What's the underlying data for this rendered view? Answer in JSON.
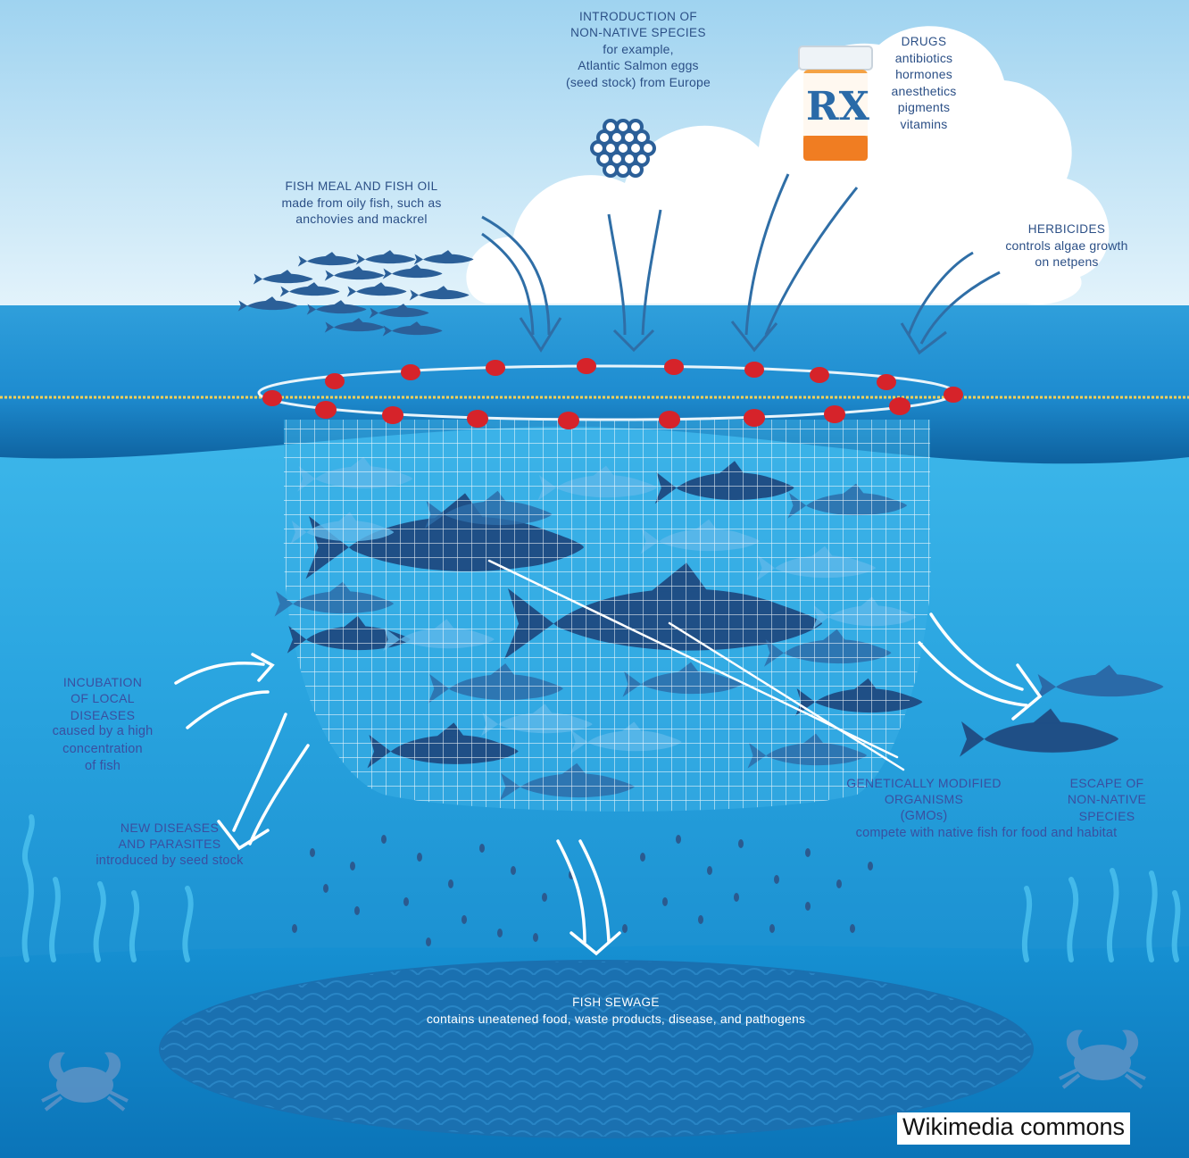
{
  "callouts": {
    "non_native_intro": {
      "heading": [
        "INTRODUCTION OF",
        "NON-NATIVE SPECIES"
      ],
      "body": [
        "for example,",
        "Atlantic Salmon eggs",
        "(seed stock) from Europe"
      ]
    },
    "drugs": {
      "heading": [
        "DRUGS"
      ],
      "body": [
        "antibiotics",
        "hormones",
        "anesthetics",
        "pigments",
        "vitamins"
      ]
    },
    "fish_meal": {
      "heading": [
        "FISH MEAL AND FISH OIL"
      ],
      "body": [
        "made from oily fish, such as",
        "anchovies and mackrel"
      ]
    },
    "herbicides": {
      "heading": [
        "HERBICIDES"
      ],
      "body": [
        "controls algae growth",
        "on netpens"
      ]
    },
    "local_diseases": {
      "heading": [
        "INCUBATION",
        "OF LOCAL",
        "DISEASES"
      ],
      "body": [
        "caused by a high",
        "concentration",
        "of fish"
      ]
    },
    "new_diseases": {
      "heading": [
        "NEW DISEASES",
        "AND PARASITES"
      ],
      "body": [
        "introduced by seed stock"
      ]
    },
    "gmos": {
      "heading": [
        "GENETICALLY MODIFIED",
        "ORGANISMS"
      ],
      "body": [
        "(GMOs)",
        "compete with native fish for food and habitat"
      ]
    },
    "escape": {
      "heading": [
        "ESCAPE OF",
        "NON-NATIVE",
        "SPECIES"
      ],
      "body": []
    },
    "sewage": {
      "heading": [
        "FISH SEWAGE"
      ],
      "body": [
        "contains uneatened food, waste products, disease, and pathogens"
      ]
    }
  },
  "pill_bottle_label": "RX",
  "credit": "Wikimedia commons",
  "colors": {
    "sky": "#cbe8f7",
    "sea_surface": "#1d8fd0",
    "water_mid": "#29a9e4",
    "seabed": "#0f86c9",
    "dark_fish": "#1f4f86",
    "buoy_red": "#d6232a",
    "label_navy": "#2b4f86",
    "label_blue": "#3a4fa0"
  }
}
